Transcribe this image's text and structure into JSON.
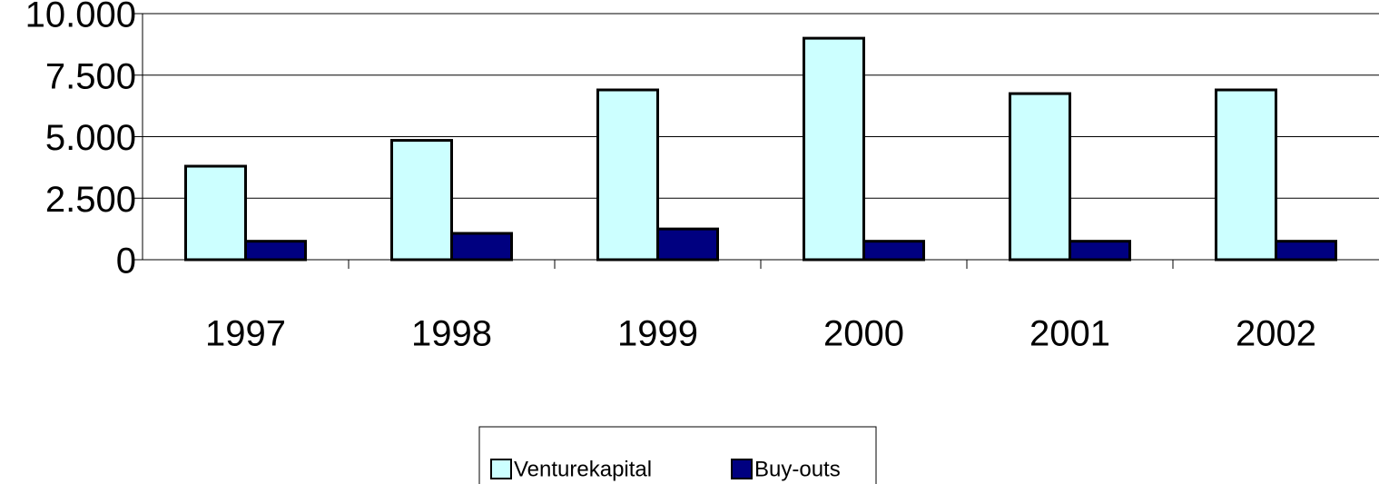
{
  "chart_data": {
    "type": "bar",
    "categories": [
      "1997",
      "1998",
      "1999",
      "2000",
      "2001",
      "2002"
    ],
    "series": [
      {
        "name": "Venturekapital",
        "color": "#ccffff",
        "values": [
          3800,
          4850,
          6900,
          9000,
          6750,
          6900
        ]
      },
      {
        "name": "Buy-outs",
        "color": "#000080",
        "values": [
          750,
          1070,
          1250,
          750,
          750,
          750
        ]
      }
    ],
    "ylim": [
      0,
      10000
    ],
    "yticks": [
      0,
      {
        "value": 2500,
        "label": "2.500"
      },
      {
        "value": 5000,
        "label": "5.000"
      },
      {
        "value": 7500,
        "label": "7.500"
      },
      {
        "value": 10000,
        "label": "10.000"
      }
    ],
    "grid": true,
    "legend": "bottom"
  }
}
